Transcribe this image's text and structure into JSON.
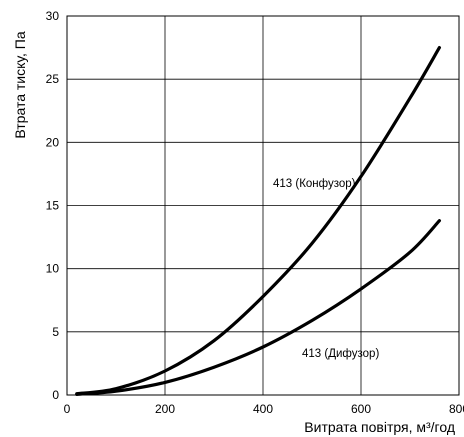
{
  "chart_data": {
    "type": "line",
    "xlabel": "Витрата повітря, м³/год",
    "ylabel": "Втрата тиску, Па",
    "xlim": [
      0,
      800
    ],
    "ylim": [
      0,
      30
    ],
    "xticks": [
      "0",
      "200",
      "400",
      "600",
      "800"
    ],
    "yticks": [
      "0",
      "5",
      "10",
      "15",
      "20",
      "25",
      "30"
    ],
    "grid": true,
    "series": [
      {
        "name": "413 (Конфузор)",
        "x": [
          20,
          100,
          200,
          300,
          400,
          500,
          600,
          700,
          760
        ],
        "y": [
          0.1,
          0.5,
          1.9,
          4.3,
          7.8,
          12.0,
          17.3,
          23.5,
          27.5
        ]
      },
      {
        "name": "413 (Дифузор)",
        "x": [
          20,
          100,
          200,
          300,
          400,
          500,
          600,
          700,
          760
        ],
        "y": [
          0.05,
          0.3,
          1.0,
          2.2,
          3.8,
          5.9,
          8.4,
          11.3,
          13.8
        ]
      }
    ]
  }
}
